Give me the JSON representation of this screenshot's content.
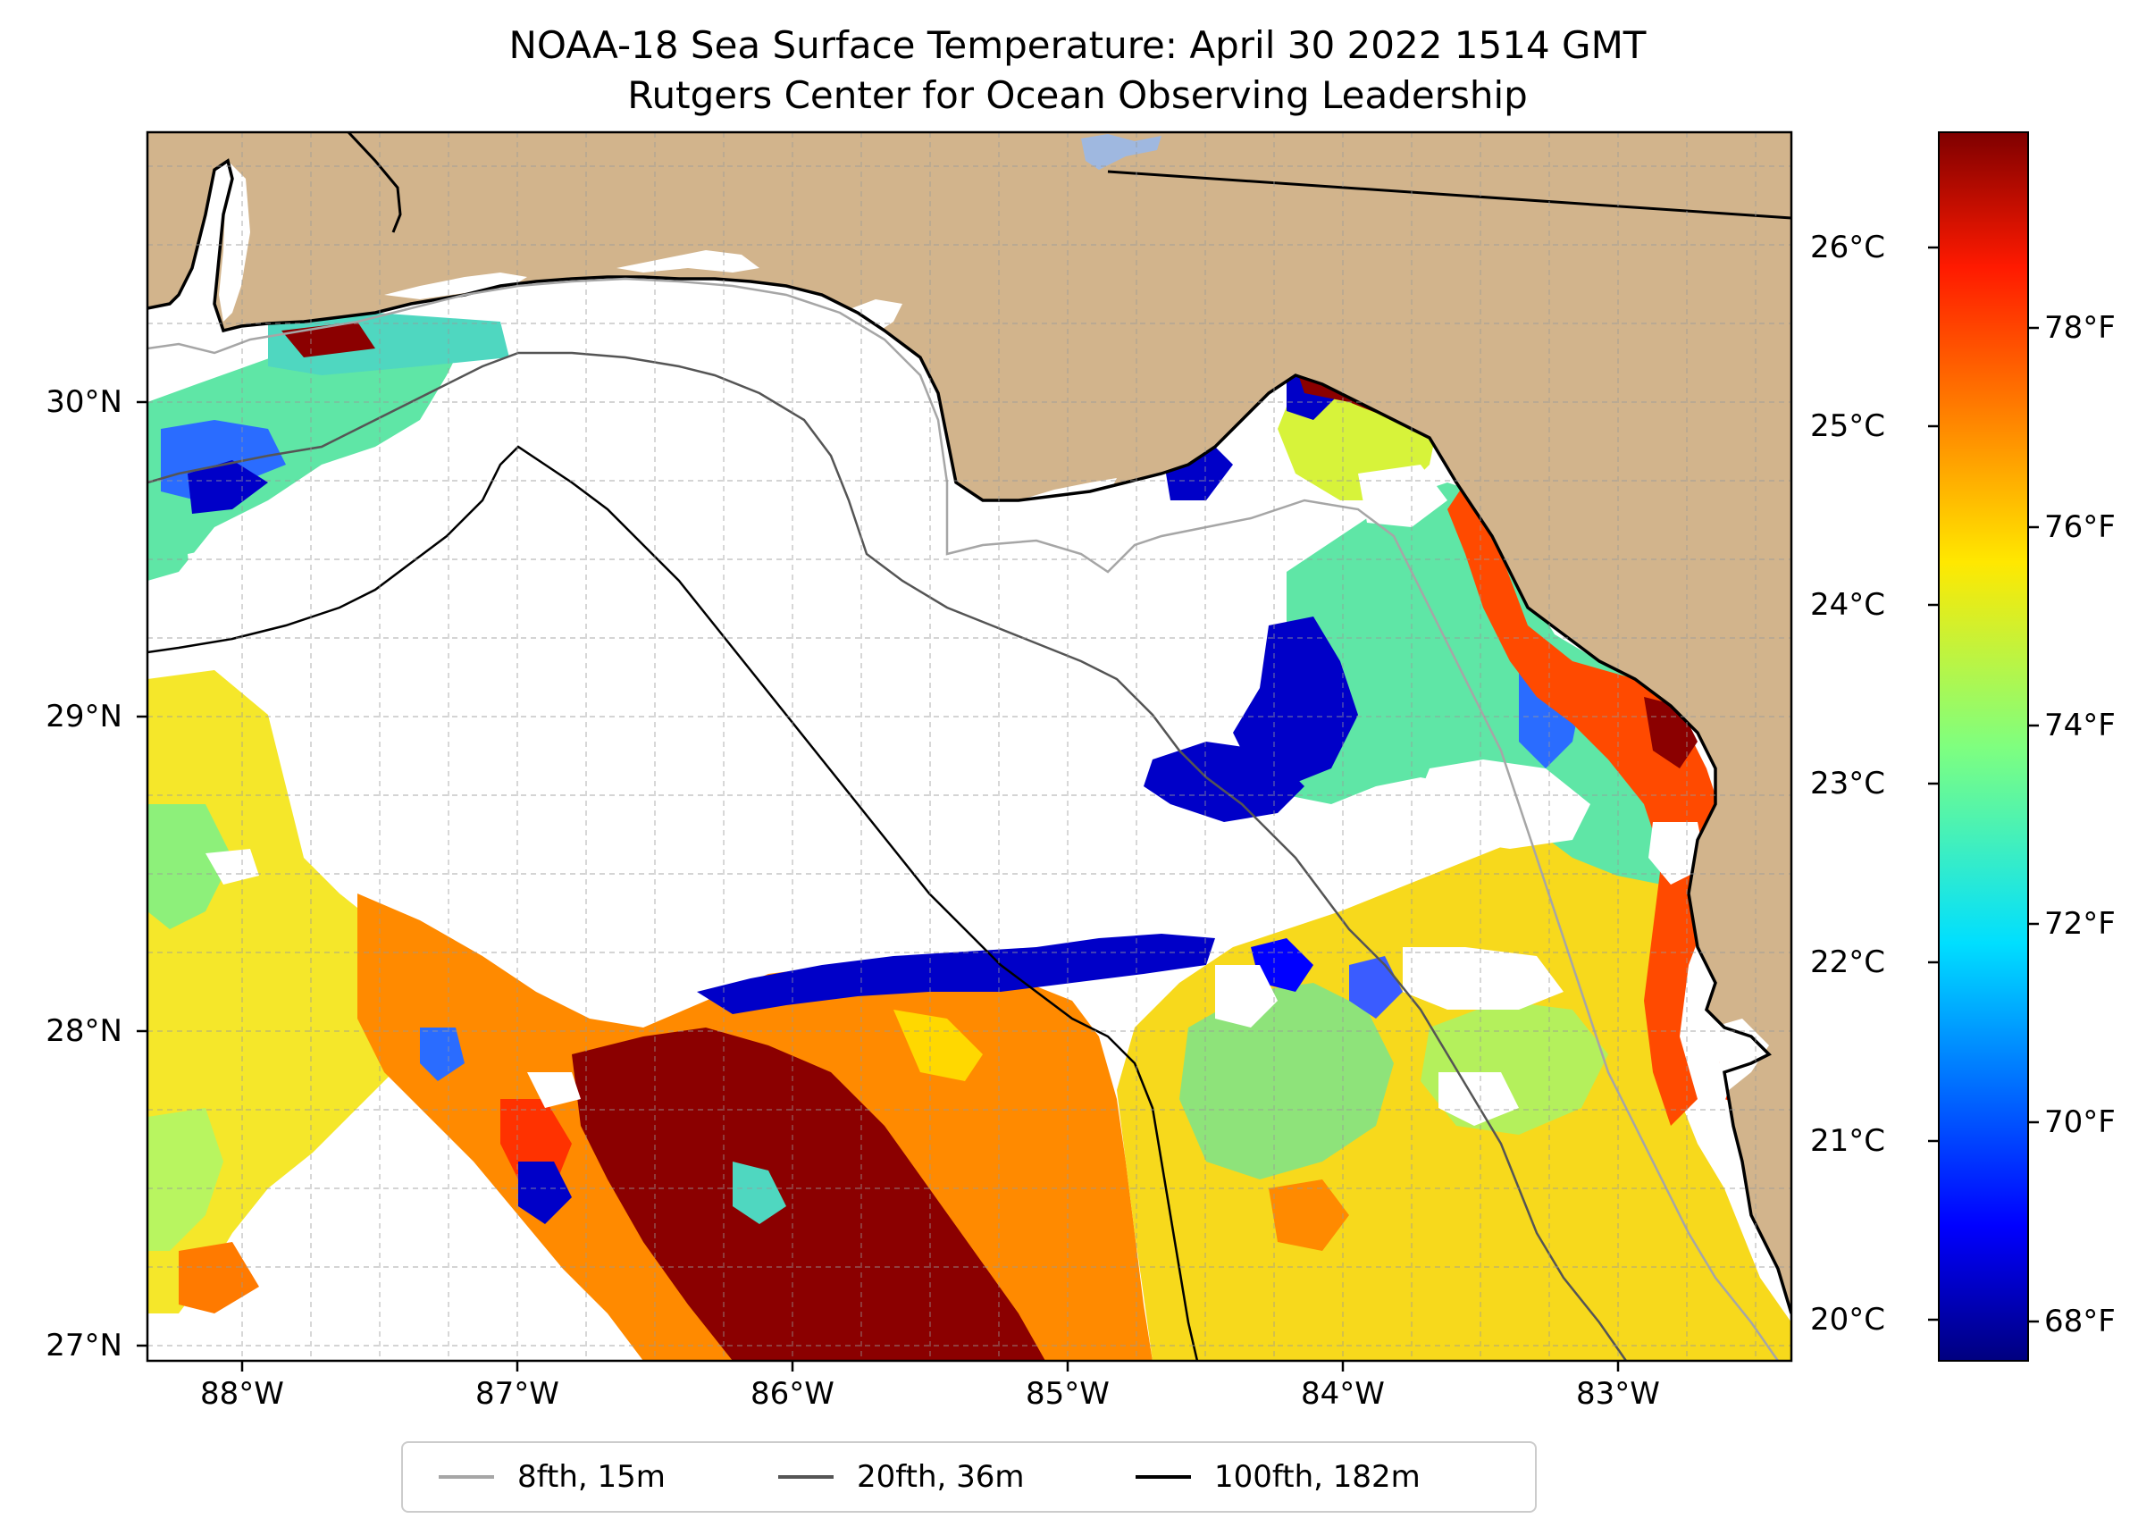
{
  "title": {
    "line1": "NOAA-18 Sea Surface Temperature: April 30 2022 1514 GMT",
    "line2": "Rutgers Center for Ocean Observing Leadership"
  },
  "map": {
    "lon_range": [
      -88.35,
      -82.4
    ],
    "lat_range": [
      26.93,
      30.87
    ],
    "land_color": "#d2b48c",
    "gridlines": "dashed"
  },
  "axes": {
    "latitude_labels": [
      "30°N",
      "29°N",
      "28°N",
      "27°N"
    ],
    "longitude_labels": [
      "88°W",
      "87°W",
      "86°W",
      "85°W",
      "84°W",
      "83°W"
    ]
  },
  "colorbar": {
    "colormap": "jet",
    "celsius_labels": [
      "26°C",
      "25°C",
      "24°C",
      "23°C",
      "22°C",
      "21°C",
      "20°C"
    ],
    "fahrenheit_labels": [
      "78°F",
      "76°F",
      "74°F",
      "72°F",
      "70°F",
      "68°F"
    ],
    "range_c": [
      19.8,
      26.6
    ]
  },
  "legend": {
    "items": [
      {
        "label": "8fth, 15m",
        "color": "#a6a6a6"
      },
      {
        "label": "20fth, 36m",
        "color": "#555555"
      },
      {
        "label": "100fth, 182m",
        "color": "#000000"
      }
    ]
  },
  "colors": {
    "no_data": "#ffffff",
    "water_body": "#9fb8e0"
  }
}
